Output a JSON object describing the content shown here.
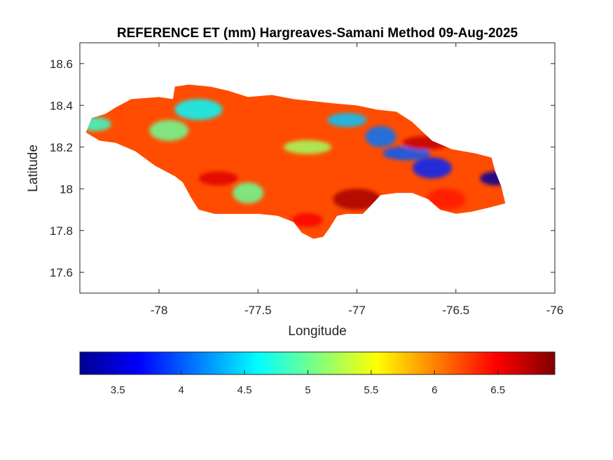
{
  "chart_data": {
    "type": "heatmap",
    "title": "REFERENCE ET (mm) Hargreaves-Samani Method  09-Aug-2025",
    "xlabel": "Longitude",
    "ylabel": "Latitude",
    "xlim": [
      -78.4,
      -76
    ],
    "ylim": [
      17.5,
      18.7
    ],
    "x_ticks": [
      "-78",
      "-77.5",
      "-77",
      "-76.5",
      "-76"
    ],
    "x_tick_values": [
      -78,
      -77.5,
      -77,
      -76.5,
      -76
    ],
    "y_ticks": [
      "17.6",
      "17.8",
      "18",
      "18.2",
      "18.4",
      "18.6"
    ],
    "y_tick_values": [
      17.6,
      17.8,
      18.0,
      18.2,
      18.4,
      18.6
    ],
    "colorbar": {
      "colormap": "jet",
      "range": [
        3.2,
        6.95
      ],
      "ticks": [
        "3.5",
        "4",
        "4.5",
        "5",
        "5.5",
        "6",
        "6.5"
      ],
      "tick_values": [
        3.5,
        4.0,
        4.5,
        5.0,
        5.5,
        6.0,
        6.5
      ]
    },
    "outline": [
      [
        -78.37,
        18.27
      ],
      [
        -78.34,
        18.34
      ],
      [
        -78.27,
        18.36
      ],
      [
        -78.22,
        18.39
      ],
      [
        -78.14,
        18.43
      ],
      [
        -78.0,
        18.44
      ],
      [
        -77.93,
        18.43
      ],
      [
        -77.92,
        18.49
      ],
      [
        -77.85,
        18.5
      ],
      [
        -77.74,
        18.49
      ],
      [
        -77.65,
        18.47
      ],
      [
        -77.55,
        18.44
      ],
      [
        -77.43,
        18.45
      ],
      [
        -77.32,
        18.43
      ],
      [
        -77.22,
        18.42
      ],
      [
        -77.12,
        18.41
      ],
      [
        -77.0,
        18.4
      ],
      [
        -76.9,
        18.38
      ],
      [
        -76.8,
        18.37
      ],
      [
        -76.72,
        18.32
      ],
      [
        -76.62,
        18.23
      ],
      [
        -76.52,
        18.19
      ],
      [
        -76.4,
        18.17
      ],
      [
        -76.32,
        18.15
      ],
      [
        -76.3,
        18.08
      ],
      [
        -76.27,
        18.01
      ],
      [
        -76.25,
        17.93
      ],
      [
        -76.33,
        17.91
      ],
      [
        -76.42,
        17.89
      ],
      [
        -76.5,
        17.88
      ],
      [
        -76.58,
        17.9
      ],
      [
        -76.64,
        17.95
      ],
      [
        -76.72,
        17.98
      ],
      [
        -76.8,
        17.98
      ],
      [
        -76.88,
        17.97
      ],
      [
        -76.92,
        17.93
      ],
      [
        -76.97,
        17.88
      ],
      [
        -77.05,
        17.88
      ],
      [
        -77.1,
        17.87
      ],
      [
        -77.14,
        17.81
      ],
      [
        -77.17,
        17.77
      ],
      [
        -77.22,
        17.76
      ],
      [
        -77.28,
        17.79
      ],
      [
        -77.32,
        17.84
      ],
      [
        -77.4,
        17.87
      ],
      [
        -77.5,
        17.88
      ],
      [
        -77.6,
        17.88
      ],
      [
        -77.72,
        17.88
      ],
      [
        -77.8,
        17.9
      ],
      [
        -77.84,
        17.96
      ],
      [
        -77.88,
        18.03
      ],
      [
        -77.92,
        18.06
      ],
      [
        -78.02,
        18.11
      ],
      [
        -78.12,
        18.18
      ],
      [
        -78.22,
        18.22
      ],
      [
        -78.3,
        18.23
      ]
    ],
    "field_features": [
      {
        "lon": -76.3,
        "lat": 18.05,
        "value": 3.3
      },
      {
        "lon": -76.62,
        "lat": 18.1,
        "value": 3.8
      },
      {
        "lon": -76.75,
        "lat": 18.17,
        "value": 4.0
      },
      {
        "lon": -76.88,
        "lat": 18.25,
        "value": 4.1
      },
      {
        "lon": -77.05,
        "lat": 18.33,
        "value": 4.4
      },
      {
        "lon": -77.8,
        "lat": 18.38,
        "value": 4.6
      },
      {
        "lon": -78.32,
        "lat": 18.31,
        "value": 4.8
      },
      {
        "lon": -77.95,
        "lat": 18.28,
        "value": 5.0
      },
      {
        "lon": -77.25,
        "lat": 18.2,
        "value": 5.2
      },
      {
        "lon": -77.55,
        "lat": 17.98,
        "value": 5.0
      },
      {
        "lon": -77.7,
        "lat": 18.05,
        "value": 6.6
      },
      {
        "lon": -77.0,
        "lat": 17.95,
        "value": 6.8
      },
      {
        "lon": -77.25,
        "lat": 17.85,
        "value": 6.5
      },
      {
        "lon": -76.55,
        "lat": 17.95,
        "value": 6.4
      },
      {
        "lon": -76.65,
        "lat": 18.22,
        "value": 6.7
      }
    ]
  }
}
